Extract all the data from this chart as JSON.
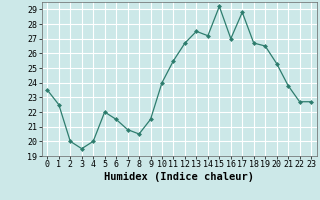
{
  "x": [
    0,
    1,
    2,
    3,
    4,
    5,
    6,
    7,
    8,
    9,
    10,
    11,
    12,
    13,
    14,
    15,
    16,
    17,
    18,
    19,
    20,
    21,
    22,
    23
  ],
  "y": [
    23.5,
    22.5,
    20.0,
    19.5,
    20.0,
    22.0,
    21.5,
    20.8,
    20.5,
    21.5,
    24.0,
    25.5,
    26.7,
    27.5,
    27.2,
    29.2,
    27.0,
    28.8,
    26.7,
    26.5,
    25.3,
    23.8,
    22.7,
    22.7
  ],
  "line_color": "#2e7d6e",
  "marker": "D",
  "marker_size": 2.0,
  "bg_color": "#cce8e8",
  "grid_color": "#ffffff",
  "xlabel": "Humidex (Indice chaleur)",
  "xlim": [
    -0.5,
    23.5
  ],
  "ylim": [
    19,
    29.5
  ],
  "yticks": [
    19,
    20,
    21,
    22,
    23,
    24,
    25,
    26,
    27,
    28,
    29
  ],
  "xticks": [
    0,
    1,
    2,
    3,
    4,
    5,
    6,
    7,
    8,
    9,
    10,
    11,
    12,
    13,
    14,
    15,
    16,
    17,
    18,
    19,
    20,
    21,
    22,
    23
  ],
  "tick_fontsize": 6.0,
  "xlabel_fontsize": 7.5,
  "linewidth": 0.9
}
